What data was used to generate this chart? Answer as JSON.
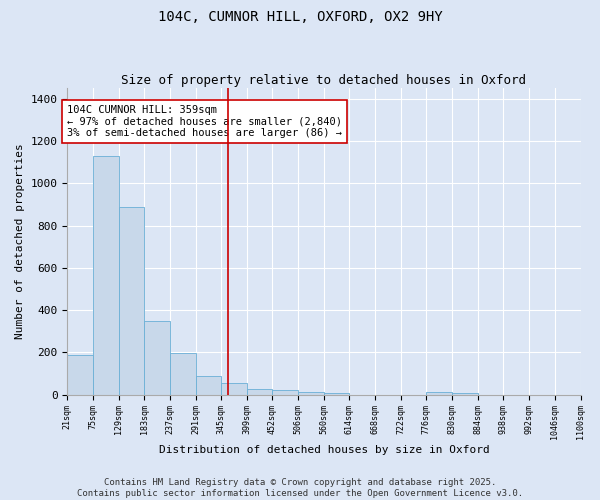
{
  "title1": "104C, CUMNOR HILL, OXFORD, OX2 9HY",
  "title2": "Size of property relative to detached houses in Oxford",
  "xlabel": "Distribution of detached houses by size in Oxford",
  "ylabel": "Number of detached properties",
  "bin_edges": [
    21,
    75,
    129,
    183,
    237,
    291,
    345,
    399,
    452,
    506,
    560,
    614,
    668,
    722,
    776,
    830,
    884,
    938,
    992,
    1046,
    1100
  ],
  "bar_heights": [
    190,
    1130,
    890,
    350,
    195,
    90,
    55,
    25,
    20,
    15,
    10,
    0,
    0,
    0,
    15,
    10,
    0,
    0,
    0,
    0
  ],
  "bar_color": "#c8d8ea",
  "bar_edge_color": "#6aafd6",
  "property_line_x": 359,
  "property_line_color": "#cc0000",
  "annotation_text": "104C CUMNOR HILL: 359sqm\n← 97% of detached houses are smaller (2,840)\n3% of semi-detached houses are larger (86) →",
  "annotation_box_color": "#ffffff",
  "annotation_box_edge_color": "#cc0000",
  "ylim": [
    0,
    1450
  ],
  "yticks": [
    0,
    200,
    400,
    600,
    800,
    1000,
    1200,
    1400
  ],
  "background_color": "#dce6f5",
  "footer_text": "Contains HM Land Registry data © Crown copyright and database right 2025.\nContains public sector information licensed under the Open Government Licence v3.0.",
  "title1_fontsize": 10,
  "title2_fontsize": 9,
  "annotation_fontsize": 7.5,
  "footer_fontsize": 6.5,
  "xlabel_fontsize": 8,
  "ylabel_fontsize": 8,
  "ytick_fontsize": 8,
  "xtick_fontsize": 6
}
